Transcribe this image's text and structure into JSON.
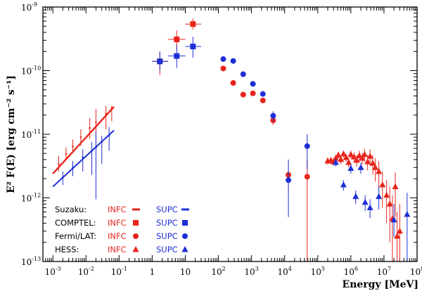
{
  "chart_data": {
    "type": "scatter",
    "title": "",
    "xlabel": "Energy [MeV]",
    "ylabel": "E² F(E) [erg cm⁻² s⁻¹]",
    "xscale": "log",
    "yscale": "log",
    "xlim": [
      0.0005,
      100000000
    ],
    "ylim": [
      1e-13,
      1e-09
    ],
    "x_tick_labels": [
      {
        "base": "10",
        "exp": "-3",
        "value": 0.001
      },
      {
        "base": "10",
        "exp": "-2",
        "value": 0.01
      },
      {
        "base": "10",
        "exp": "-1",
        "value": 0.1
      },
      {
        "base": "1",
        "exp": "",
        "value": 1
      },
      {
        "base": "10",
        "exp": "",
        "value": 10
      },
      {
        "base": "10",
        "exp": "2",
        "value": 100
      },
      {
        "base": "10",
        "exp": "3",
        "value": 1000
      },
      {
        "base": "10",
        "exp": "4",
        "value": 10000
      },
      {
        "base": "10",
        "exp": "5",
        "value": 100000
      },
      {
        "base": "10",
        "exp": "6",
        "value": 1000000
      },
      {
        "base": "10",
        "exp": "7",
        "value": 10000000
      },
      {
        "base": "10",
        "exp": "8",
        "value": 100000000
      }
    ],
    "y_tick_labels": [
      {
        "base": "10",
        "exp": "-9",
        "value": 1e-09
      },
      {
        "base": "10",
        "exp": "-10",
        "value": 1e-10
      },
      {
        "base": "10",
        "exp": "-11",
        "value": 1e-11
      },
      {
        "base": "10",
        "exp": "-12",
        "value": 1e-12
      },
      {
        "base": "10",
        "exp": "-13",
        "value": 1e-13
      }
    ],
    "colors": {
      "INFC": "#e8251c",
      "SUPC": "#1e2fd6"
    },
    "legend": {
      "position": "bottom-left",
      "rows": [
        {
          "instrument": "Suzaku:",
          "infc": "INFC",
          "supc": "SUPC",
          "marker": "line"
        },
        {
          "instrument": "COMPTEL:",
          "infc": "INFC",
          "supc": "SUPC",
          "marker": "square"
        },
        {
          "instrument": "Fermi/LAT:",
          "infc": "INFC",
          "supc": "SUPC",
          "marker": "circle"
        },
        {
          "instrument": "HESS:",
          "infc": "INFC",
          "supc": "SUPC",
          "marker": "triangle"
        }
      ]
    },
    "series": [
      {
        "name": "Suzaku INFC",
        "instrument": "Suzaku",
        "phase": "INFC",
        "marker": "line",
        "line": {
          "x": [
            0.001,
            0.07
          ],
          "y": [
            2.4e-12,
            2.7e-11
          ]
        },
        "points": [
          {
            "x": 0.0015,
            "y": 3.4e-12,
            "ylo": 2.6e-12,
            "yhi": 4.6e-12
          },
          {
            "x": 0.0025,
            "y": 4.9e-12,
            "ylo": 3.9e-12,
            "yhi": 6.2e-12
          },
          {
            "x": 0.004,
            "y": 6.4e-12,
            "ylo": 5.1e-12,
            "yhi": 8.3e-12
          },
          {
            "x": 0.007,
            "y": 9e-12,
            "ylo": 6.6e-12,
            "yhi": 1.2e-11
          },
          {
            "x": 0.013,
            "y": 1.25e-11,
            "ylo": 8.5e-12,
            "yhi": 1.8e-11
          },
          {
            "x": 0.02,
            "y": 1.55e-11,
            "ylo": 7e-12,
            "yhi": 2.5e-11
          },
          {
            "x": 0.04,
            "y": 2.1e-11,
            "ylo": 1.2e-11,
            "yhi": 2.8e-11
          },
          {
            "x": 0.06,
            "y": 2.6e-11,
            "ylo": 1.6e-11,
            "yhi": 2.8e-11
          }
        ]
      },
      {
        "name": "Suzaku SUPC",
        "instrument": "Suzaku",
        "phase": "SUPC",
        "marker": "line",
        "line": {
          "x": [
            0.001,
            0.07
          ],
          "y": [
            1.5e-12,
            1.15e-11
          ]
        },
        "points": [
          {
            "x": 0.002,
            "y": 2.1e-12,
            "ylo": 1.6e-12,
            "yhi": 2.6e-12
          },
          {
            "x": 0.004,
            "y": 3e-12,
            "ylo": 2.2e-12,
            "yhi": 3.8e-12
          },
          {
            "x": 0.008,
            "y": 4.3e-12,
            "ylo": 2.6e-12,
            "yhi": 5.8e-12
          },
          {
            "x": 0.015,
            "y": 5.5e-12,
            "ylo": 2.3e-12,
            "yhi": 7.5e-12
          },
          {
            "x": 0.02,
            "y": 6.2e-12,
            "ylo": 9.5e-13,
            "yhi": 1.1e-11
          },
          {
            "x": 0.03,
            "y": 7.6e-12,
            "ylo": 3.4e-12,
            "yhi": 9.5e-12
          },
          {
            "x": 0.05,
            "y": 9.6e-12,
            "ylo": 5.5e-12,
            "yhi": 1.3e-11
          }
        ]
      },
      {
        "name": "COMPTEL INFC",
        "instrument": "COMPTEL",
        "phase": "INFC",
        "marker": "square",
        "points": [
          {
            "x": 1.7,
            "y": 1.4e-10,
            "ylo": 8.5e-11,
            "yhi": 2e-10,
            "xlo": 1.0,
            "xhi": 3.0
          },
          {
            "x": 5.5,
            "y": 3.1e-10,
            "ylo": 2.1e-10,
            "yhi": 4.3e-10,
            "xlo": 3.0,
            "xhi": 10.0
          },
          {
            "x": 17,
            "y": 5.4e-10,
            "ylo": 4.4e-10,
            "yhi": 6.6e-10,
            "xlo": 10.0,
            "xhi": 30.0
          }
        ]
      },
      {
        "name": "COMPTEL SUPC",
        "instrument": "COMPTEL",
        "phase": "SUPC",
        "marker": "square",
        "points": [
          {
            "x": 1.7,
            "y": 1.4e-10,
            "ylo": 1e-10,
            "yhi": 2e-10,
            "xlo": 1.0,
            "xhi": 3.0
          },
          {
            "x": 5.5,
            "y": 1.7e-10,
            "ylo": 1.1e-10,
            "yhi": 2.5e-10,
            "xlo": 3.0,
            "xhi": 10.0
          },
          {
            "x": 17,
            "y": 2.4e-10,
            "ylo": 1.6e-10,
            "yhi": 3.4e-10,
            "xlo": 10.0,
            "xhi": 30.0
          }
        ]
      },
      {
        "name": "Fermi/LAT INFC",
        "instrument": "Fermi/LAT",
        "phase": "INFC",
        "marker": "circle",
        "points": [
          {
            "x": 140,
            "y": 1.08e-10
          },
          {
            "x": 280,
            "y": 6.4e-11
          },
          {
            "x": 560,
            "y": 4.2e-11
          },
          {
            "x": 1100,
            "y": 4.4e-11
          },
          {
            "x": 2200,
            "y": 3.4e-11
          },
          {
            "x": 4500,
            "y": 1.65e-11,
            "ylo": 1.4e-11,
            "yhi": 1.95e-11
          },
          {
            "x": 13000,
            "y": 2.3e-12,
            "ylo": 1.3e-12,
            "yhi": 3.3e-12
          },
          {
            "x": 48000,
            "y": 2.15e-12,
            "ylo": 1e-13,
            "yhi": 4e-12
          }
        ]
      },
      {
        "name": "Fermi/LAT SUPC",
        "instrument": "Fermi/LAT",
        "phase": "SUPC",
        "marker": "circle",
        "points": [
          {
            "x": 140,
            "y": 1.52e-10
          },
          {
            "x": 280,
            "y": 1.42e-10
          },
          {
            "x": 560,
            "y": 8.8e-11
          },
          {
            "x": 1100,
            "y": 6.2e-11
          },
          {
            "x": 2200,
            "y": 4.3e-11
          },
          {
            "x": 4500,
            "y": 1.95e-11,
            "ylo": 1.6e-11,
            "yhi": 2.3e-11
          },
          {
            "x": 13000,
            "y": 1.9e-12,
            "ylo": 5e-13,
            "yhi": 4e-12
          },
          {
            "x": 48000,
            "y": 6.5e-12,
            "ylo": 2.8e-12,
            "yhi": 1e-11
          }
        ]
      },
      {
        "name": "HESS INFC",
        "instrument": "HESS",
        "phase": "INFC",
        "marker": "triangle",
        "points": [
          {
            "x": 200000,
            "y": 3.8e-12,
            "ylo": 3.3e-12,
            "yhi": 4.3e-12
          },
          {
            "x": 250000,
            "y": 3.9e-12,
            "ylo": 3.4e-12,
            "yhi": 4.4e-12
          },
          {
            "x": 300000,
            "y": 3.7e-12,
            "ylo": 3.2e-12,
            "yhi": 4.2e-12
          },
          {
            "x": 350000,
            "y": 4.2e-12,
            "ylo": 3.6e-12,
            "yhi": 4.8e-12
          },
          {
            "x": 420000,
            "y": 4.7e-12,
            "ylo": 4.1e-12,
            "yhi": 5.3e-12
          },
          {
            "x": 500000,
            "y": 4e-12,
            "ylo": 3.4e-12,
            "yhi": 4.6e-12
          },
          {
            "x": 600000,
            "y": 4.9e-12,
            "ylo": 4.3e-12,
            "yhi": 5.5e-12
          },
          {
            "x": 720000,
            "y": 4.3e-12,
            "ylo": 3.7e-12,
            "yhi": 4.9e-12
          },
          {
            "x": 860000,
            "y": 3.6e-12,
            "ylo": 3e-12,
            "yhi": 4.2e-12
          },
          {
            "x": 1000000,
            "y": 4.8e-12,
            "ylo": 4.1e-12,
            "yhi": 5.5e-12
          },
          {
            "x": 1250000,
            "y": 4.4e-12,
            "ylo": 3.6e-12,
            "yhi": 5.2e-12
          },
          {
            "x": 1500000,
            "y": 3.9e-12,
            "ylo": 3.1e-12,
            "yhi": 4.7e-12
          },
          {
            "x": 1800000,
            "y": 4.6e-12,
            "ylo": 3.7e-12,
            "yhi": 5.5e-12
          },
          {
            "x": 2200000,
            "y": 4.2e-12,
            "ylo": 3.3e-12,
            "yhi": 5.1e-12
          },
          {
            "x": 2600000,
            "y": 4.8e-12,
            "ylo": 3.7e-12,
            "yhi": 5.9e-12
          },
          {
            "x": 3200000,
            "y": 3.7e-12,
            "ylo": 2.7e-12,
            "yhi": 4.7e-12
          },
          {
            "x": 3800000,
            "y": 4.5e-12,
            "ylo": 3.2e-12,
            "yhi": 5.8e-12
          },
          {
            "x": 4600000,
            "y": 3.5e-12,
            "ylo": 2.3e-12,
            "yhi": 4.7e-12
          },
          {
            "x": 5500000,
            "y": 3e-12,
            "ylo": 1.8e-12,
            "yhi": 4.2e-12
          },
          {
            "x": 7000000,
            "y": 2.6e-12,
            "ylo": 1.4e-12,
            "yhi": 3.8e-12
          },
          {
            "x": 9000000,
            "y": 1.6e-12,
            "ylo": 7e-13,
            "yhi": 2.6e-12
          },
          {
            "x": 12000000,
            "y": 1.1e-12,
            "ylo": 4e-13,
            "yhi": 1.9e-12
          },
          {
            "x": 15000000,
            "y": 8e-13,
            "ylo": 2e-13,
            "yhi": 1.5e-12
          },
          {
            "x": 18000000,
            "y": 4.7e-13,
            "ylo": 1e-13,
            "yhi": 1.1e-12
          },
          {
            "x": 22000000,
            "y": 1.5e-12,
            "ylo": 5e-13,
            "yhi": 2.5e-12
          },
          {
            "x": 25000000,
            "y": 2.5e-13,
            "ylo": 1e-13,
            "yhi": 6e-13
          },
          {
            "x": 30000000,
            "y": 3e-13,
            "ylo": 1e-13,
            "yhi": 8e-13
          }
        ]
      },
      {
        "name": "HESS SUPC",
        "instrument": "HESS",
        "phase": "SUPC",
        "marker": "triangle",
        "points": [
          {
            "x": 350000,
            "y": 3.6e-12,
            "ylo": 3.1e-12,
            "yhi": 4.1e-12
          },
          {
            "x": 600000,
            "y": 1.6e-12,
            "ylo": 1.3e-12,
            "yhi": 1.9e-12
          },
          {
            "x": 1000000,
            "y": 2.9e-12,
            "ylo": 2.4e-12,
            "yhi": 3.4e-12
          },
          {
            "x": 1400000,
            "y": 1.05e-12,
            "ylo": 8e-13,
            "yhi": 1.3e-12
          },
          {
            "x": 2000000,
            "y": 3e-12,
            "ylo": 2.4e-12,
            "yhi": 3.6e-12
          },
          {
            "x": 2700000,
            "y": 8.5e-13,
            "ylo": 6.2e-13,
            "yhi": 1.1e-12
          },
          {
            "x": 3800000,
            "y": 7e-13,
            "ylo": 4.8e-13,
            "yhi": 9.5e-13
          },
          {
            "x": 7000000,
            "y": 1.05e-12,
            "ylo": 6.5e-13,
            "yhi": 1.5e-12
          },
          {
            "x": 20000000,
            "y": 4.5e-13,
            "ylo": 2.4e-13,
            "yhi": 8e-13
          },
          {
            "x": 50000000,
            "y": 5.5e-13,
            "ylo": 1e-13,
            "yhi": 1.2e-12
          }
        ]
      }
    ]
  }
}
